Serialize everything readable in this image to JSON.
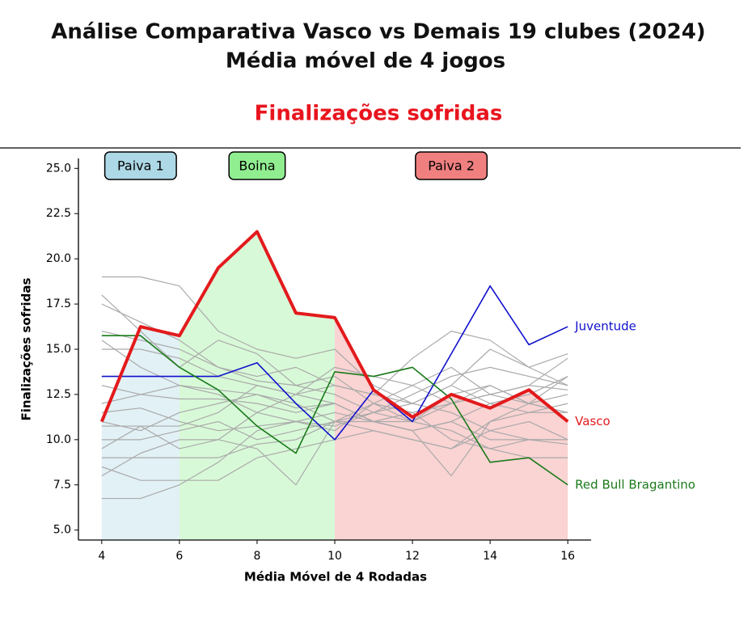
{
  "chart_data": {
    "type": "line",
    "title": "Análise Comparativa Vasco vs Demais 19 clubes (2024)",
    "subtitle": "Média móvel de 4 jogos",
    "panel_title": "Finalizações sofridas",
    "x_label": "Média Móvel de 4 Rodadas",
    "y_label": "Finalizações sofridas",
    "x": [
      4,
      5,
      6,
      7,
      8,
      9,
      10,
      11,
      12,
      13,
      14,
      15,
      16
    ],
    "xlim": [
      3.4,
      16.6
    ],
    "ylim": [
      4.45,
      25.55
    ],
    "xticks": [
      4,
      6,
      8,
      10,
      12,
      14,
      16
    ],
    "yticks": [
      {
        "value": 5,
        "label": "5.0"
      },
      {
        "value": 7.5,
        "label": "7.5"
      },
      {
        "value": 10,
        "label": "10.0"
      },
      {
        "value": 12.5,
        "label": "12.5"
      },
      {
        "value": 15,
        "label": "15.0"
      },
      {
        "value": 17.5,
        "label": "17.5"
      },
      {
        "value": 20,
        "label": "20.0"
      },
      {
        "value": 22.5,
        "label": "22.5"
      },
      {
        "value": 25,
        "label": "25.0"
      }
    ],
    "periods": [
      {
        "label": "Paiva 1",
        "start": 4,
        "end": 6,
        "color": "#add8e6"
      },
      {
        "label": "Boina",
        "start": 6,
        "end": 10,
        "color": "#90ee90"
      },
      {
        "label": "Paiva 2",
        "start": 10,
        "end": 16,
        "color": "#f08080"
      }
    ],
    "series": [
      {
        "color": "#aaaaaa",
        "values": [
          19,
          19,
          18.5,
          16,
          15,
          14.5,
          15,
          13,
          12,
          13,
          12,
          11.5,
          11.5
        ]
      },
      {
        "color": "#aaaaaa",
        "values": [
          18,
          16,
          14,
          15.5,
          14.75,
          13,
          13.5,
          12,
          11,
          12.5,
          13,
          12,
          11.5
        ]
      },
      {
        "color": "#aaaaaa",
        "values": [
          16,
          15.5,
          15,
          14,
          13.25,
          13,
          12.5,
          11.5,
          12.5,
          13.5,
          14,
          13.5,
          13
        ]
      },
      {
        "color": "#aaaaaa",
        "values": [
          15.5,
          14,
          13,
          12.75,
          12.5,
          11.75,
          12,
          11,
          10.5,
          11,
          12,
          12.5,
          13.5
        ]
      },
      {
        "color": "#aaaaaa",
        "values": [
          13,
          12.5,
          12.25,
          12.25,
          12,
          11.5,
          12,
          11,
          11,
          12,
          12.5,
          13,
          14.5
        ]
      },
      {
        "color": "#aaaaaa",
        "values": [
          12,
          12.5,
          13,
          12.5,
          11.5,
          11,
          10.5,
          12,
          13,
          14,
          12.5,
          12,
          11.5
        ]
      },
      {
        "color": "#aaaaaa",
        "values": [
          11.5,
          11.75,
          11,
          10.5,
          10.75,
          11,
          10.75,
          11.5,
          12,
          11.5,
          10.5,
          10,
          10
        ]
      },
      {
        "color": "#aaaaaa",
        "values": [
          11,
          10.5,
          11.5,
          12,
          12.5,
          12,
          11,
          10.5,
          10,
          9.5,
          11,
          11.5,
          12
        ]
      },
      {
        "color": "#aaaaaa",
        "values": [
          10.75,
          10.75,
          10.75,
          11.5,
          13,
          12.5,
          12,
          11,
          11.5,
          12,
          13,
          12,
          13.5
        ]
      },
      {
        "color": "#aaaaaa",
        "values": [
          10,
          10,
          10.5,
          11,
          10,
          10.5,
          11,
          12,
          11.5,
          10,
          9.5,
          10,
          10
        ]
      },
      {
        "color": "#aaaaaa",
        "values": [
          9.5,
          10.75,
          9.5,
          10,
          11.5,
          12.5,
          13,
          12.5,
          12,
          13,
          15,
          14,
          14.75
        ]
      },
      {
        "color": "#aaaaaa",
        "values": [
          9,
          9,
          9,
          9,
          9.75,
          10,
          11,
          11.5,
          11,
          10.5,
          9.5,
          9,
          9
        ]
      },
      {
        "color": "#aaaaaa",
        "values": [
          8.5,
          7.75,
          7.75,
          7.75,
          9,
          9.5,
          10,
          10.5,
          10,
          9.5,
          10.5,
          11,
          10
        ]
      },
      {
        "color": "#aaaaaa",
        "values": [
          8,
          9.25,
          10,
          10,
          9.5,
          7.5,
          11,
          11,
          10.5,
          11,
          10,
          10,
          9.75
        ]
      },
      {
        "color": "#aaaaaa",
        "values": [
          6.75,
          6.75,
          7.5,
          8.75,
          10.5,
          11,
          11.5,
          11,
          10.5,
          8,
          11,
          12,
          12.5
        ]
      },
      {
        "color": "#aaaaaa",
        "values": [
          17.5,
          16.5,
          15.5,
          14,
          13.5,
          14,
          13,
          12.5,
          14.5,
          16,
          15.5,
          14,
          13
        ]
      },
      {
        "color": "#aaaaaa",
        "values": [
          15,
          15,
          14.5,
          13.5,
          13,
          12.5,
          14,
          13.5,
          13,
          12,
          12.5,
          13,
          12.75
        ]
      },
      {
        "name": "Juventude",
        "color": "#1010cc",
        "values": [
          13.5,
          13.5,
          13.5,
          13.5,
          14.25,
          12,
          10,
          12.75,
          11,
          14.75,
          18.5,
          15.25,
          16.25
        ]
      },
      {
        "name": "Red Bull Bragantino",
        "color": "#1a7a1a",
        "values": [
          15.75,
          15.75,
          14,
          12.75,
          10.75,
          9.25,
          13.75,
          13.5,
          14,
          12.25,
          8.75,
          9,
          7.5
        ]
      },
      {
        "name": "Vasco",
        "color": "#e31a1c",
        "highlight": true,
        "values": [
          11,
          16.25,
          15.75,
          19.5,
          21.5,
          17,
          16.75,
          12.75,
          11.25,
          12.5,
          11.75,
          12.75,
          11
        ]
      }
    ]
  }
}
